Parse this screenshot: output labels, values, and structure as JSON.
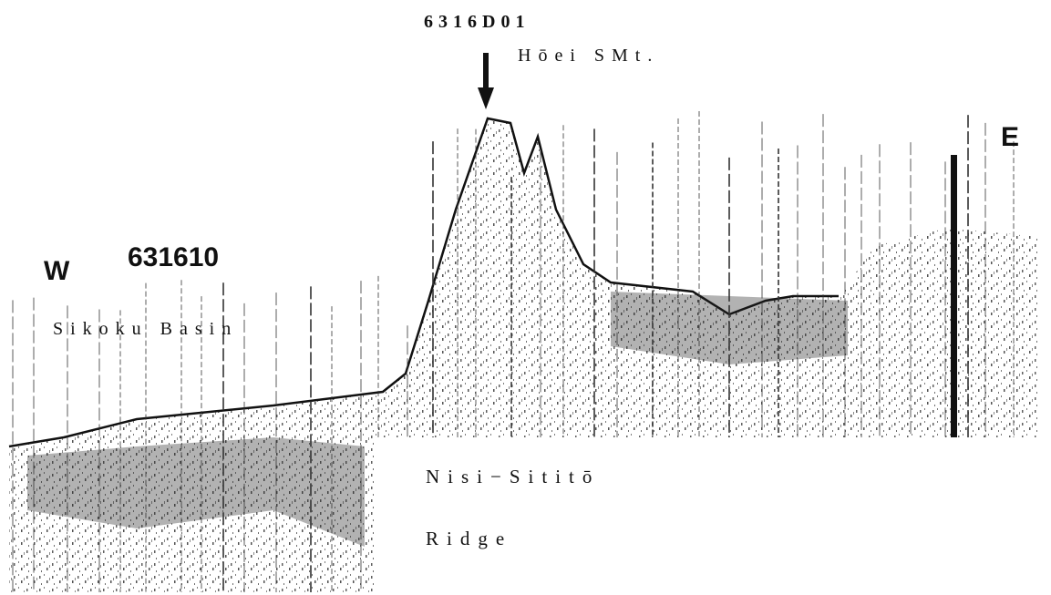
{
  "profile": {
    "station": "6316D01",
    "seamount": "Hōei SMt.",
    "east": "E",
    "west": "W",
    "line": "631610",
    "basin": "Sikoku Basin",
    "ridge_line1": "Nisi−Sititō",
    "ridge_line2": "Ridge"
  }
}
